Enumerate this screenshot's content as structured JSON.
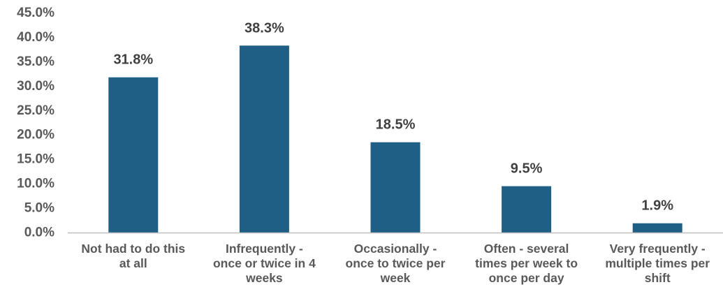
{
  "chart_data": {
    "type": "bar",
    "categories": [
      [
        "Not had to do this",
        "at all"
      ],
      [
        "Infrequently -",
        "once or twice in 4",
        "weeks"
      ],
      [
        "Occasionally -",
        "once to twice per",
        "week"
      ],
      [
        "Often - several",
        "times per week to",
        "once per day"
      ],
      [
        "Very frequently -",
        "multiple times per",
        "shift"
      ]
    ],
    "values": [
      31.8,
      38.3,
      18.5,
      9.5,
      1.9
    ],
    "data_labels": [
      "31.8%",
      "38.3%",
      "18.5%",
      "9.5%",
      "1.9%"
    ],
    "y_ticks": [
      0,
      5,
      10,
      15,
      20,
      25,
      30,
      35,
      40,
      45
    ],
    "y_tick_labels": [
      "0.0%",
      "5.0%",
      "10.0%",
      "15.0%",
      "20.0%",
      "25.0%",
      "30.0%",
      "35.0%",
      "40.0%",
      "45.0%"
    ],
    "ylim": [
      0,
      45
    ],
    "grid": false,
    "legend": "none",
    "bar_color": "#1F5F86",
    "axis_color": "#BFBFBF"
  }
}
